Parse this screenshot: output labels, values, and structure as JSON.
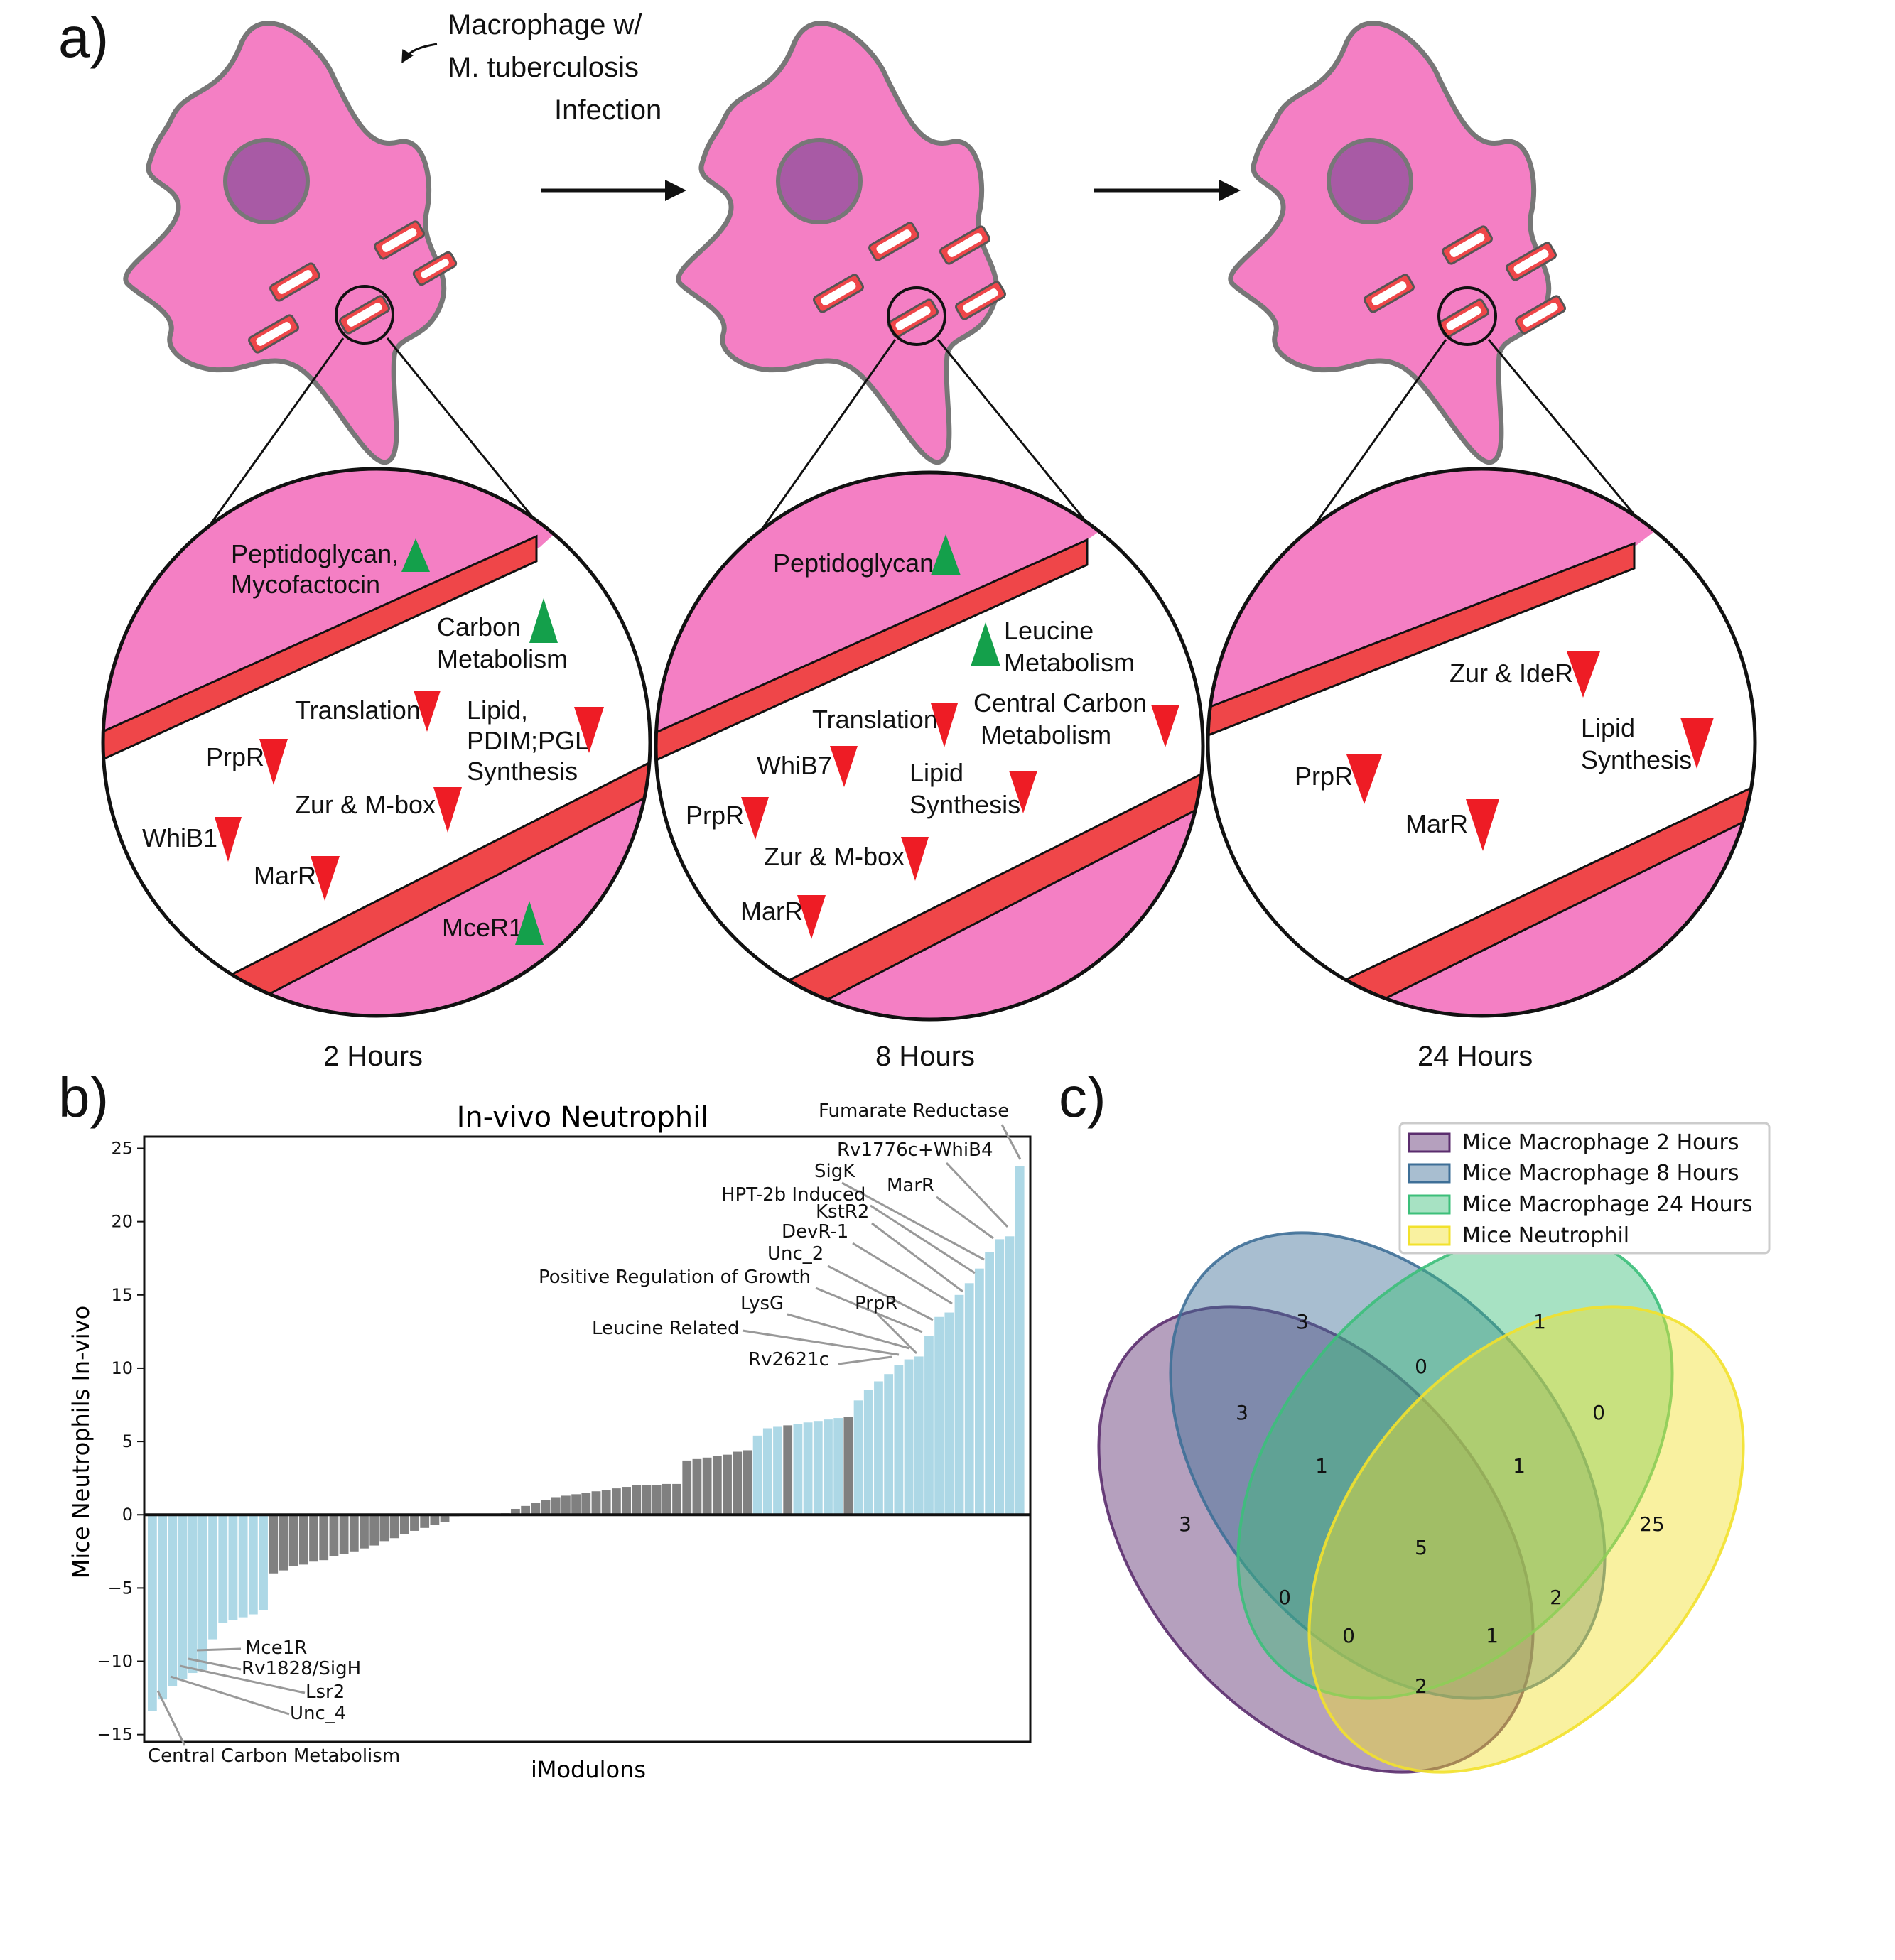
{
  "panels": {
    "a": "a)",
    "b": "b)",
    "c": "c)"
  },
  "colors": {
    "cell": "#f47fc4",
    "cell_stroke": "#777777",
    "nucleus": "#a85aa5",
    "membrane": "#ef4649",
    "up": "#14a04b",
    "down": "#ee1c25",
    "bar_light": "#add8e6",
    "bar_dark": "#808080"
  },
  "panel_a": {
    "infection_label": [
      "Macrophage w/",
      "M. tuberculosis",
      "Infection"
    ],
    "time_labels": [
      "2 Hours",
      "8 Hours",
      "24 Hours"
    ],
    "zoom_2h": {
      "labels": [
        "Peptidoglycan,",
        "Mycofactocin",
        "Carbon",
        "Metabolism",
        "Translation",
        "Lipid,",
        "PDIM;PGL",
        "Synthesis",
        "PrpR",
        "Zur & M-box",
        "WhiB1",
        "MarR",
        "MceR1"
      ],
      "arrows": [
        "up",
        "up",
        "down",
        "down",
        "down",
        "down",
        "down",
        "down",
        "up"
      ]
    },
    "zoom_8h": {
      "labels": [
        "Peptidoglycan",
        "Leucine",
        "Metabolism",
        "Central Carbon",
        "Metabolism",
        "Translation",
        "WhiB7",
        "Lipid",
        "Synthesis",
        "PrpR",
        "Zur & M-box",
        "MarR"
      ],
      "arrows": [
        "up",
        "up",
        "down",
        "down",
        "down",
        "down",
        "down",
        "down",
        "down"
      ]
    },
    "zoom_24h": {
      "labels": [
        "Zur & IdeR",
        "Lipid",
        "Synthesis",
        "PrpR",
        "MarR"
      ],
      "arrows": [
        "down",
        "down",
        "down",
        "down"
      ]
    }
  },
  "chart_data": {
    "type": "bar",
    "title": "In-vivo Neutrophil",
    "xlabel": "iModulons",
    "ylabel": "Mice Neutrophils In-vivo",
    "ylim": [
      -15.5,
      25.8
    ],
    "yticks": [
      -15,
      -10,
      -5,
      0,
      5,
      10,
      15,
      20,
      25
    ],
    "grid": false,
    "values": [
      -13.4,
      -12.6,
      -11.7,
      -11.2,
      -10.8,
      -10.6,
      -8.5,
      -7.4,
      -7.2,
      -7.0,
      -6.8,
      -6.5,
      -4.0,
      -3.8,
      -3.5,
      -3.4,
      -3.2,
      -3.1,
      -2.8,
      -2.7,
      -2.5,
      -2.3,
      -2.1,
      -1.8,
      -1.6,
      -1.3,
      -1.1,
      -0.9,
      -0.7,
      -0.5,
      -0.1,
      -0.05,
      -0.03,
      -0.02,
      -0.01,
      0.1,
      0.4,
      0.6,
      0.8,
      1.0,
      1.2,
      1.3,
      1.4,
      1.5,
      1.6,
      1.7,
      1.8,
      1.9,
      2.0,
      2.0,
      2.0,
      2.1,
      2.1,
      3.7,
      3.8,
      3.9,
      4.0,
      4.1,
      4.3,
      4.4,
      5.4,
      5.9,
      6.0,
      6.1,
      6.2,
      6.3,
      6.4,
      6.5,
      6.6,
      6.7,
      7.8,
      8.5,
      9.1,
      9.6,
      10.2,
      10.6,
      10.8,
      12.2,
      13.5,
      13.8,
      15.0,
      15.8,
      16.8,
      17.9,
      18.8,
      19.0,
      23.8
    ],
    "light_indices": [
      0,
      1,
      2,
      3,
      4,
      5,
      6,
      7,
      8,
      9,
      10,
      11,
      60,
      61,
      62,
      64,
      65,
      66,
      67,
      68,
      70,
      71,
      72,
      73,
      74,
      75,
      76,
      77,
      78,
      79,
      80,
      81,
      82,
      83,
      84,
      85,
      86
    ],
    "annotations": [
      "Fumarate Reductase",
      "Rv1776c+WhiB4",
      "SigK",
      "MarR",
      "HPT-2b Induced",
      "KstR2",
      "DevR-1",
      "Unc_2",
      "Positive Regulation of Growth",
      "LysG",
      "PrpR",
      "Leucine Related",
      "Rv2621c",
      "Mce1R",
      "Rv1828/SigH",
      "Lsr2",
      "Unc_4",
      "Central Carbon Metabolism"
    ]
  },
  "venn": {
    "legend": [
      "Mice Macrophage 2 Hours",
      "Mice Macrophage 8 Hours",
      "Mice Macrophage 24 Hours",
      "Mice Neutrophil"
    ],
    "colors": [
      "#5b2d6e",
      "#3e6f97",
      "#3cbf7a",
      "#f2e12c"
    ],
    "counts": [
      "3",
      "1",
      "0",
      "25",
      "3",
      "0",
      "1",
      "1",
      "5",
      "3",
      "0",
      "0",
      "2",
      "1",
      "2"
    ]
  }
}
